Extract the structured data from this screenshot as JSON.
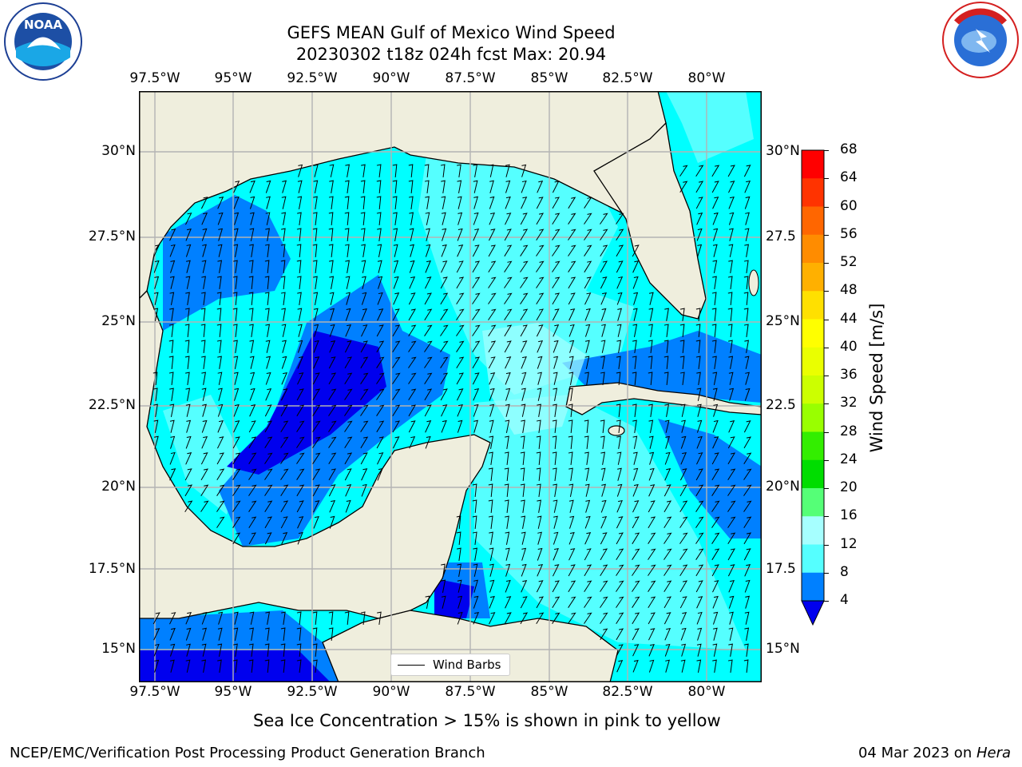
{
  "title_line1": "GEFS MEAN Gulf of Mexico Wind Speed",
  "title_line2": "20230302 t18z 024h fcst   Max: 20.94",
  "map": {
    "lon_labels": [
      "97.5°W",
      "95°W",
      "92.5°W",
      "90°W",
      "87.5°W",
      "85°W",
      "82.5°W",
      "80°W"
    ],
    "lat_labels": [
      "30°N",
      "27.5°N",
      "25°N",
      "22.5°N",
      "20°N",
      "17.5°N",
      "15°N"
    ],
    "right_lat_labels": [
      "30°N",
      "27.5",
      "25°N",
      "22.5",
      "20°N",
      "17.5",
      "15°N"
    ],
    "colors": {
      "land": "#efeedd",
      "grid": "#b3b3b3",
      "coast": "#000000",
      "water_8_12": "#00ffff",
      "water_4_8": "#0080ff",
      "water_lt4": "#0000ee",
      "water_12_16": "#55ffff",
      "water_16_20": "#a6ffff"
    }
  },
  "legend": {
    "label": "Wind Barbs"
  },
  "colorbar": {
    "label": "Wind Speed [m/s]",
    "ticks": [
      "68",
      "64",
      "60",
      "56",
      "52",
      "48",
      "44",
      "40",
      "36",
      "32",
      "28",
      "24",
      "20",
      "16",
      "12",
      "8",
      "4"
    ],
    "colors": [
      "#ff0000",
      "#ff3300",
      "#ff6600",
      "#ff8c00",
      "#ffb000",
      "#ffe000",
      "#ffff00",
      "#eaff00",
      "#ccff00",
      "#99ff00",
      "#33ee00",
      "#00dd00",
      "#55ff77",
      "#a6ffff",
      "#55ffff",
      "#00ffff",
      "#0080ff"
    ],
    "extend_color": "#0000ee"
  },
  "note": "Sea Ice Concentration > 15% is shown in pink to yellow",
  "footer_left": "NCEP/EMC/Verification Post Processing Product Generation Branch",
  "footer_right_date": "04 Mar 2023 on ",
  "footer_right_machine": "Hera",
  "logos": {
    "left": "NOAA",
    "right": "NATIONAL WEATHER SERVICE"
  }
}
